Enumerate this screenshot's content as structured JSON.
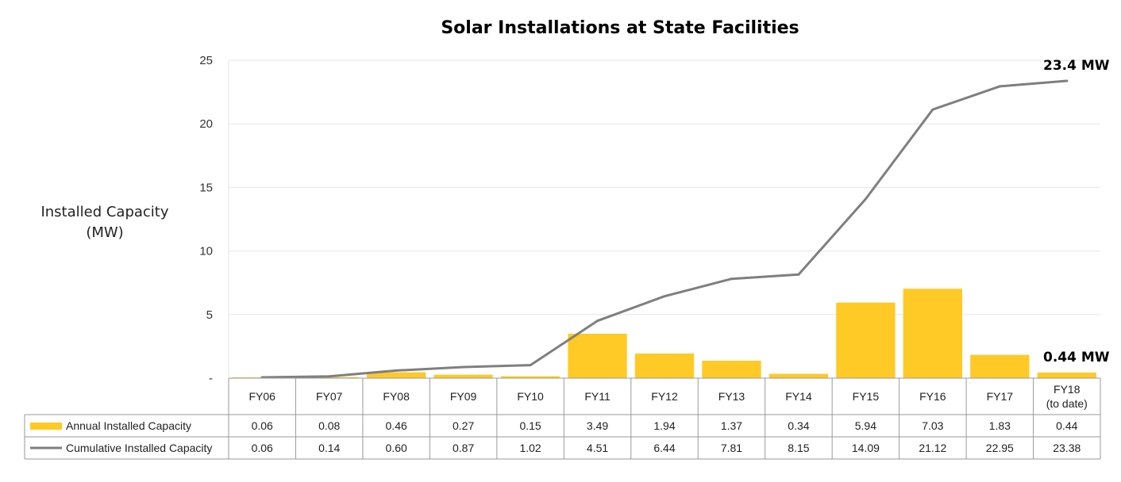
{
  "chart_data": {
    "type": "bar",
    "title": "Solar Installations at State Facilities",
    "ylabel_lines": [
      "Installed Capacity",
      "(MW)"
    ],
    "ylim": [
      0,
      25
    ],
    "yticks": [
      {
        "value": 0,
        "label": "-"
      },
      {
        "value": 5,
        "label": "5"
      },
      {
        "value": 10,
        "label": "10"
      },
      {
        "value": 15,
        "label": "15"
      },
      {
        "value": 20,
        "label": "20"
      },
      {
        "value": 25,
        "label": "25"
      }
    ],
    "grid": true,
    "categories": [
      [
        "FY06"
      ],
      [
        "FY07"
      ],
      [
        "FY08"
      ],
      [
        "FY09"
      ],
      [
        "FY10"
      ],
      [
        "FY11"
      ],
      [
        "FY12"
      ],
      [
        "FY13"
      ],
      [
        "FY14"
      ],
      [
        "FY15"
      ],
      [
        "FY16"
      ],
      [
        "FY17"
      ],
      [
        "FY18",
        "(to date)"
      ]
    ],
    "series": [
      {
        "name": "Annual Installed Capacity",
        "type": "bar",
        "color": "#FFC926",
        "values": [
          0.06,
          0.08,
          0.46,
          0.27,
          0.15,
          3.49,
          1.94,
          1.37,
          0.34,
          5.94,
          7.03,
          1.83,
          0.44
        ],
        "labels": [
          "0.06",
          "0.08",
          "0.46",
          "0.27",
          "0.15",
          "3.49",
          "1.94",
          "1.37",
          "0.34",
          "5.94",
          "7.03",
          "1.83",
          "0.44"
        ]
      },
      {
        "name": "Cumulative Installed Capacity",
        "type": "line",
        "color": "#7F7F7F",
        "values": [
          0.06,
          0.14,
          0.6,
          0.87,
          1.02,
          4.51,
          6.44,
          7.81,
          8.15,
          14.09,
          21.12,
          22.95,
          23.38
        ],
        "labels": [
          "0.06",
          "0.14",
          "0.60",
          "0.87",
          "1.02",
          "4.51",
          "6.44",
          "7.81",
          "8.15",
          "14.09",
          "21.12",
          "22.95",
          "23.38"
        ]
      }
    ],
    "annotations": [
      {
        "text": "23.4 MW",
        "series": 1,
        "index": 12
      },
      {
        "text": "0.44 MW",
        "series": 0,
        "index": 12
      }
    ],
    "data_table": true
  }
}
